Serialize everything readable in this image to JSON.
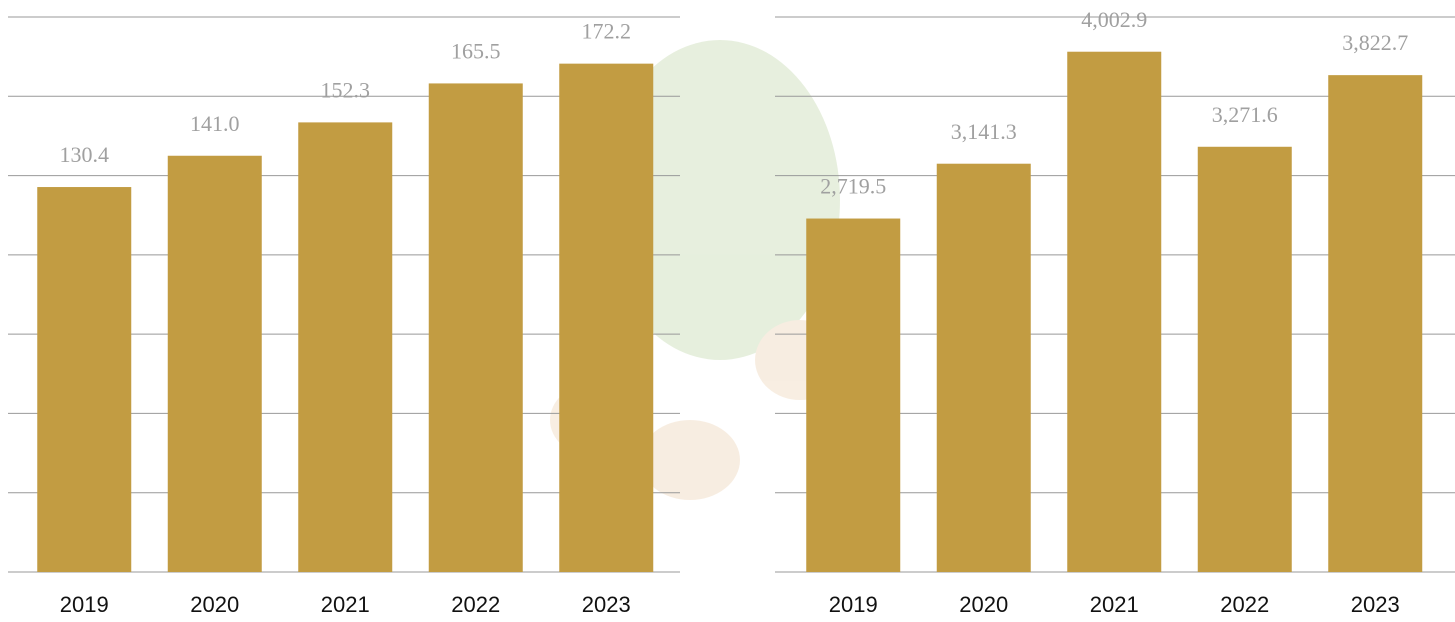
{
  "chart_data": [
    {
      "type": "bar",
      "categories": [
        "2019",
        "2020",
        "2021",
        "2022",
        "2023"
      ],
      "values": [
        130.4,
        141.0,
        152.3,
        165.5,
        172.2
      ],
      "value_labels": [
        "130.4",
        "141.0",
        "152.3",
        "165.5",
        "172.2"
      ],
      "color": "#c29c42",
      "ylim": [
        0,
        188
      ]
    },
    {
      "type": "bar",
      "categories": [
        "2019",
        "2020",
        "2021",
        "2022",
        "2023"
      ],
      "values": [
        2719.5,
        3141.3,
        4002.9,
        3271.6,
        3822.7
      ],
      "value_labels": [
        "2,719.5",
        "3,141.3",
        "4,002.9",
        "3,271.6",
        "3,822.7"
      ],
      "color": "#c29c42",
      "ylim": [
        0,
        4270
      ]
    }
  ]
}
